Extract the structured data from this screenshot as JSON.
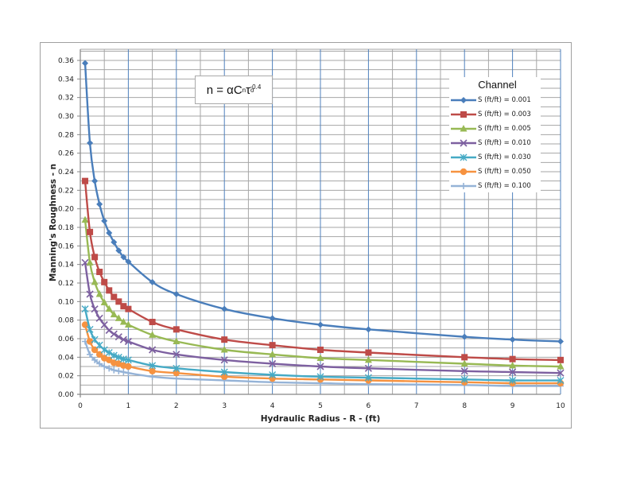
{
  "chart_data": {
    "type": "line",
    "title": "",
    "annotation": {
      "formula_text": "n = αCnτo^-0.4",
      "n": "n",
      "eq": "=",
      "alpha": "α",
      "C": "C",
      "C_sub": "n",
      "tau": "τ",
      "tau_sub": "o",
      "exp": "-0.4"
    },
    "xlabel": "Hydraulic Radius - R - (ft)",
    "ylabel": "Manning's Roughness - n",
    "xlim": [
      0,
      10
    ],
    "ylim": [
      0,
      0.37
    ],
    "xticks": [
      "0",
      "1",
      "2",
      "3",
      "4",
      "5",
      "6",
      "7",
      "8",
      "9",
      "10"
    ],
    "yticks": [
      "0.00",
      "0.02",
      "0.04",
      "0.06",
      "0.08",
      "0.10",
      "0.12",
      "0.14",
      "0.16",
      "0.18",
      "0.20",
      "0.22",
      "0.24",
      "0.26",
      "0.28",
      "0.30",
      "0.32",
      "0.34",
      "0.36"
    ],
    "grid": true,
    "legend_title": "Channel",
    "legend_position": "upper right",
    "x": [
      0.1,
      0.2,
      0.3,
      0.4,
      0.5,
      0.6,
      0.7,
      0.8,
      0.9,
      1,
      1.5,
      2,
      3,
      4,
      5,
      6,
      8,
      9,
      10
    ],
    "series": [
      {
        "name": "S (ft/ft) = 0.001",
        "color": "#4a7ebb",
        "marker": "diamond",
        "values": [
          0.357,
          0.271,
          0.23,
          0.205,
          0.187,
          0.174,
          0.164,
          0.155,
          0.148,
          0.143,
          0.121,
          0.108,
          0.092,
          0.082,
          0.075,
          0.07,
          0.062,
          0.059,
          0.057
        ]
      },
      {
        "name": "S (ft/ft) = 0.003",
        "color": "#be4b48",
        "marker": "square",
        "values": [
          0.23,
          0.175,
          0.148,
          0.132,
          0.121,
          0.112,
          0.105,
          0.1,
          0.095,
          0.092,
          0.078,
          0.07,
          0.059,
          0.053,
          0.048,
          0.045,
          0.04,
          0.038,
          0.037
        ]
      },
      {
        "name": "S (ft/ft) = 0.005",
        "color": "#98b954",
        "marker": "triangle",
        "values": [
          0.188,
          0.142,
          0.121,
          0.108,
          0.099,
          0.092,
          0.086,
          0.082,
          0.078,
          0.075,
          0.064,
          0.057,
          0.048,
          0.043,
          0.039,
          0.037,
          0.033,
          0.031,
          0.03
        ]
      },
      {
        "name": "S (ft/ft) = 0.010",
        "color": "#7d60a0",
        "marker": "x",
        "values": [
          0.142,
          0.108,
          0.092,
          0.082,
          0.075,
          0.069,
          0.065,
          0.062,
          0.059,
          0.057,
          0.048,
          0.043,
          0.037,
          0.033,
          0.03,
          0.028,
          0.025,
          0.024,
          0.023
        ]
      },
      {
        "name": "S (ft/ft) = 0.030",
        "color": "#46aac5",
        "marker": "star",
        "values": [
          0.092,
          0.07,
          0.059,
          0.053,
          0.048,
          0.045,
          0.042,
          0.04,
          0.038,
          0.037,
          0.031,
          0.028,
          0.024,
          0.021,
          0.019,
          0.018,
          0.016,
          0.015,
          0.015
        ]
      },
      {
        "name": "S (ft/ft) = 0.050",
        "color": "#f69240",
        "marker": "circle",
        "values": [
          0.075,
          0.057,
          0.048,
          0.043,
          0.039,
          0.037,
          0.034,
          0.033,
          0.031,
          0.03,
          0.025,
          0.023,
          0.019,
          0.017,
          0.016,
          0.015,
          0.013,
          0.012,
          0.012
        ]
      },
      {
        "name": "S (ft/ft) = 0.100",
        "color": "#95b3d7",
        "marker": "plus",
        "values": [
          0.057,
          0.043,
          0.037,
          0.033,
          0.03,
          0.028,
          0.026,
          0.025,
          0.024,
          0.023,
          0.019,
          0.017,
          0.015,
          0.013,
          0.012,
          0.011,
          0.01,
          0.009,
          0.009
        ]
      }
    ]
  }
}
